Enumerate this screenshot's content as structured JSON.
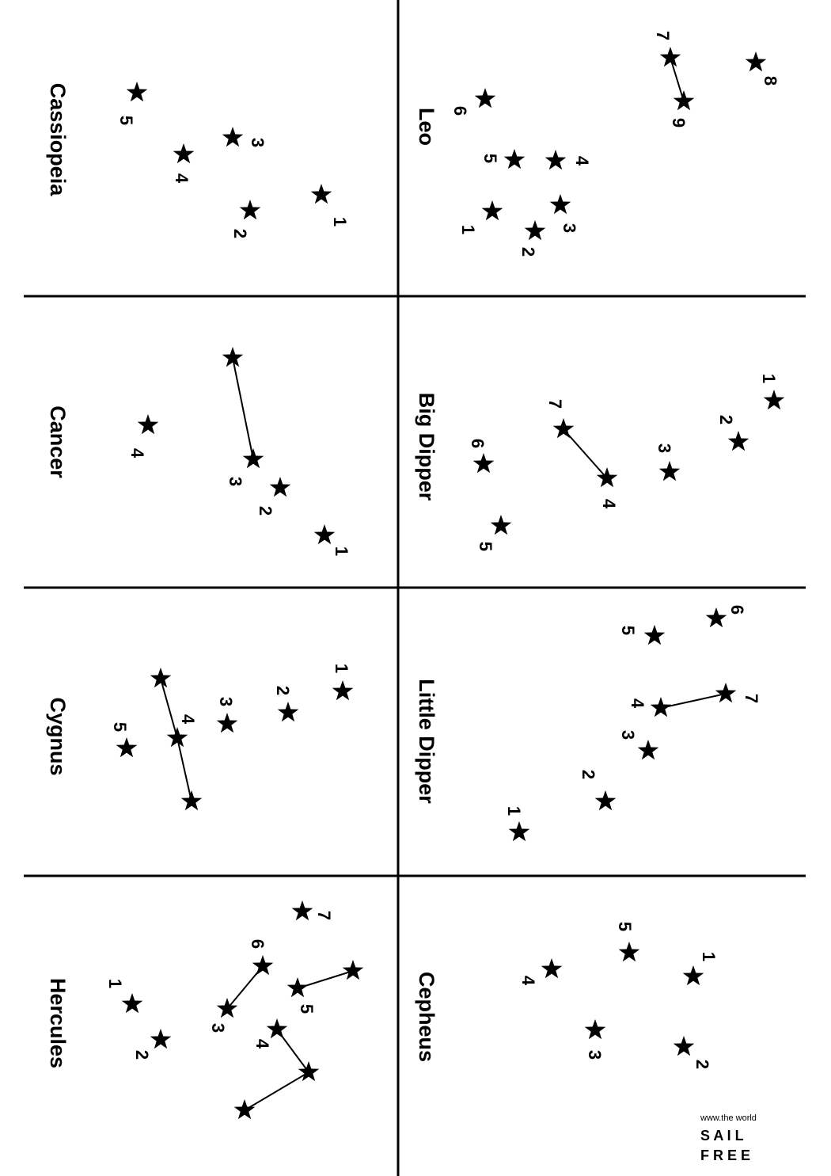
{
  "panels": [
    {
      "name": "Cassiopeia",
      "stars": [
        {
          "n": "1"
        },
        {
          "n": "2"
        },
        {
          "n": "3"
        },
        {
          "n": "4"
        },
        {
          "n": "5"
        }
      ],
      "links": []
    },
    {
      "name": "Leo",
      "stars": [
        {
          "n": "1"
        },
        {
          "n": "2"
        },
        {
          "n": "3"
        },
        {
          "n": "4"
        },
        {
          "n": "5"
        },
        {
          "n": "6"
        },
        {
          "n": "7"
        },
        {
          "n": "8"
        },
        {
          "n": "9"
        }
      ],
      "links": [
        [
          "7",
          "9"
        ]
      ]
    },
    {
      "name": "Cancer",
      "stars": [
        {
          "n": "1"
        },
        {
          "n": "2"
        },
        {
          "n": "3"
        },
        {
          "n": "4"
        },
        {
          "n": ""
        }
      ],
      "links": [
        [
          "3",
          ""
        ]
      ]
    },
    {
      "name": "Big Dipper",
      "stars": [
        {
          "n": "1"
        },
        {
          "n": "2"
        },
        {
          "n": "3"
        },
        {
          "n": "4"
        },
        {
          "n": "5"
        },
        {
          "n": "6"
        },
        {
          "n": "7"
        }
      ],
      "links": [
        [
          "7",
          "4"
        ]
      ]
    },
    {
      "name": "Cygnus",
      "stars": [
        {
          "n": "1"
        },
        {
          "n": "2"
        },
        {
          "n": "3"
        },
        {
          "n": "4"
        },
        {
          "n": "5"
        },
        {
          "n": ""
        },
        {
          "n": ""
        }
      ],
      "links": [
        [
          "4",
          "top"
        ],
        [
          "4",
          "bottom"
        ]
      ]
    },
    {
      "name": "Little Dipper",
      "stars": [
        {
          "n": "1"
        },
        {
          "n": "2"
        },
        {
          "n": "3"
        },
        {
          "n": "4"
        },
        {
          "n": "5"
        },
        {
          "n": "6"
        },
        {
          "n": "7"
        }
      ],
      "links": [
        [
          "4",
          "7"
        ]
      ]
    },
    {
      "name": "Hercules",
      "stars": [
        {
          "n": "1"
        },
        {
          "n": "2"
        },
        {
          "n": "3"
        },
        {
          "n": "4"
        },
        {
          "n": "5"
        },
        {
          "n": "6"
        },
        {
          "n": "7"
        },
        {
          "n": ""
        },
        {
          "n": ""
        },
        {
          "n": ""
        }
      ],
      "links": [
        [
          "6",
          "3"
        ],
        [
          "5",
          "a"
        ],
        [
          "4",
          "b"
        ],
        [
          "b",
          "c"
        ]
      ]
    },
    {
      "name": "Cepheus",
      "stars": [
        {
          "n": "1"
        },
        {
          "n": "2"
        },
        {
          "n": "3"
        },
        {
          "n": "4"
        },
        {
          "n": "5"
        }
      ],
      "links": []
    }
  ],
  "watermark": {
    "line1": "www.the world",
    "line2": "S A I L",
    "line3": "F R E E"
  }
}
